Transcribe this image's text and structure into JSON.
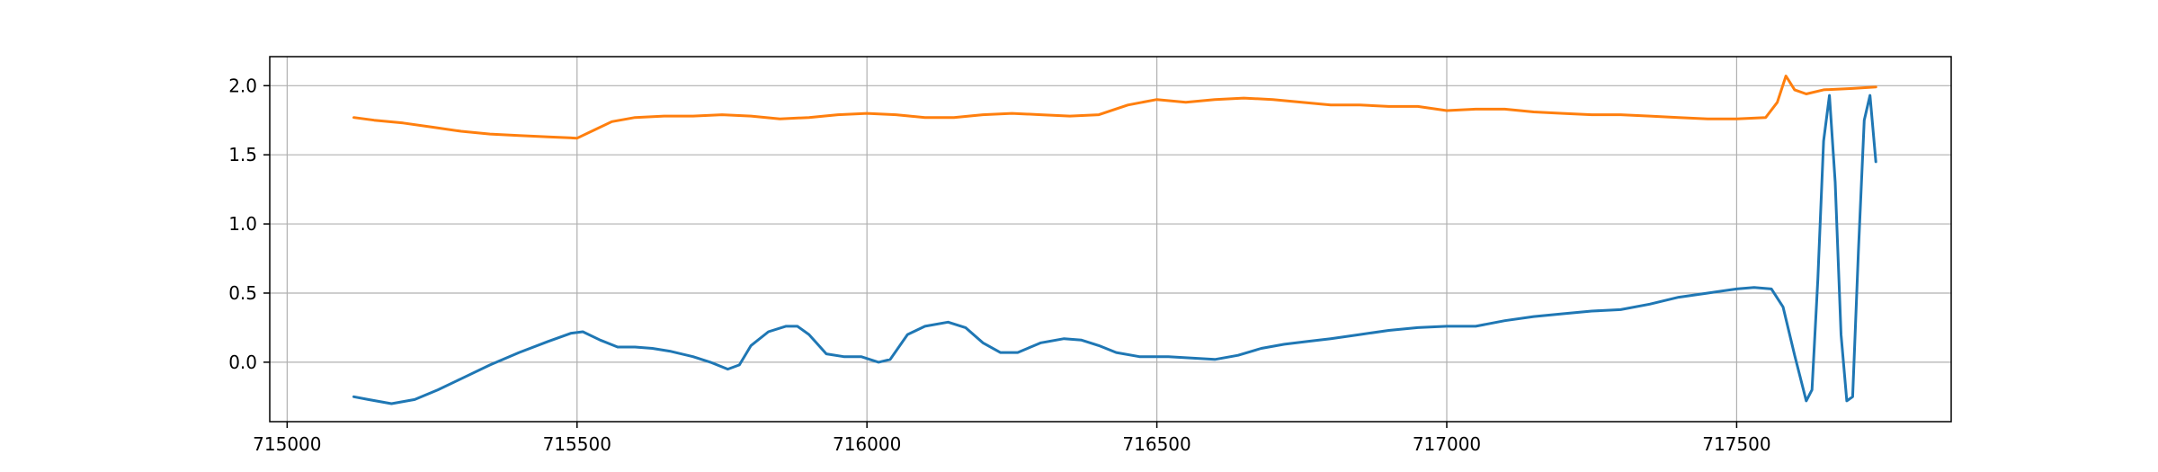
{
  "chart_data": {
    "type": "line",
    "title": "",
    "xlabel": "",
    "ylabel": "",
    "xlim": [
      714970,
      717870
    ],
    "ylim": [
      -0.43,
      2.21
    ],
    "xticks": [
      715000,
      715500,
      716000,
      716500,
      717000,
      717500
    ],
    "xtick_labels": [
      "715000",
      "715500",
      "716000",
      "716500",
      "717000",
      "717500"
    ],
    "yticks": [
      0.0,
      0.5,
      1.0,
      1.5,
      2.0
    ],
    "ytick_labels": [
      "0.0",
      "0.5",
      "1.0",
      "1.5",
      "2.0"
    ],
    "grid": true,
    "legend": "none",
    "series": [
      {
        "color": "#1f77b4",
        "x": [
          715115,
          715140,
          715180,
          715220,
          715260,
          715300,
          715350,
          715400,
          715450,
          715490,
          715510,
          715540,
          715570,
          715600,
          715630,
          715660,
          715700,
          715730,
          715760,
          715780,
          715800,
          715830,
          715860,
          715880,
          715900,
          715930,
          715960,
          715990,
          716020,
          716040,
          716070,
          716100,
          716140,
          716170,
          716200,
          716230,
          716260,
          716300,
          716340,
          716370,
          716400,
          716430,
          716470,
          716520,
          716560,
          716600,
          716640,
          716680,
          716720,
          716760,
          716800,
          716850,
          716900,
          716950,
          717000,
          717050,
          717100,
          717150,
          717200,
          717250,
          717300,
          717350,
          717400,
          717450,
          717500,
          717530,
          717560,
          717580,
          717600,
          717620,
          717630,
          717640,
          717650,
          717660,
          717670,
          717680,
          717690,
          717700,
          717710,
          717720,
          717730,
          717740
        ],
        "values": [
          -0.25,
          -0.27,
          -0.3,
          -0.27,
          -0.2,
          -0.12,
          -0.02,
          0.07,
          0.15,
          0.21,
          0.22,
          0.16,
          0.11,
          0.11,
          0.1,
          0.08,
          0.04,
          0.0,
          -0.05,
          -0.02,
          0.12,
          0.22,
          0.26,
          0.26,
          0.2,
          0.06,
          0.04,
          0.04,
          0.0,
          0.02,
          0.2,
          0.26,
          0.29,
          0.25,
          0.14,
          0.07,
          0.07,
          0.14,
          0.17,
          0.16,
          0.12,
          0.07,
          0.04,
          0.04,
          0.03,
          0.02,
          0.05,
          0.1,
          0.13,
          0.15,
          0.17,
          0.2,
          0.23,
          0.25,
          0.26,
          0.26,
          0.3,
          0.33,
          0.35,
          0.37,
          0.38,
          0.42,
          0.47,
          0.5,
          0.53,
          0.54,
          0.53,
          0.4,
          0.05,
          -0.28,
          -0.2,
          0.6,
          1.6,
          1.93,
          1.3,
          0.2,
          -0.28,
          -0.25,
          0.8,
          1.75,
          1.93,
          1.45
        ]
      },
      {
        "color": "#ff7f0e",
        "x": [
          715115,
          715150,
          715200,
          715250,
          715300,
          715350,
          715400,
          715450,
          715500,
          715530,
          715560,
          715600,
          715650,
          715700,
          715750,
          715800,
          715850,
          715900,
          715950,
          716000,
          716050,
          716100,
          716150,
          716200,
          716250,
          716300,
          716350,
          716400,
          716450,
          716500,
          716550,
          716600,
          716650,
          716700,
          716750,
          716800,
          716850,
          716900,
          716950,
          717000,
          717050,
          717100,
          717150,
          717200,
          717250,
          717300,
          717350,
          717400,
          717450,
          717500,
          717550,
          717570,
          717585,
          717600,
          717620,
          717650,
          717700,
          717740
        ],
        "values": [
          1.77,
          1.75,
          1.73,
          1.7,
          1.67,
          1.65,
          1.64,
          1.63,
          1.62,
          1.68,
          1.74,
          1.77,
          1.78,
          1.78,
          1.79,
          1.78,
          1.76,
          1.77,
          1.79,
          1.8,
          1.79,
          1.77,
          1.77,
          1.79,
          1.8,
          1.79,
          1.78,
          1.79,
          1.86,
          1.9,
          1.88,
          1.9,
          1.91,
          1.9,
          1.88,
          1.86,
          1.86,
          1.85,
          1.85,
          1.82,
          1.83,
          1.83,
          1.81,
          1.8,
          1.79,
          1.79,
          1.78,
          1.77,
          1.76,
          1.76,
          1.77,
          1.88,
          2.07,
          1.97,
          1.94,
          1.97,
          1.98,
          1.99
        ]
      }
    ]
  }
}
